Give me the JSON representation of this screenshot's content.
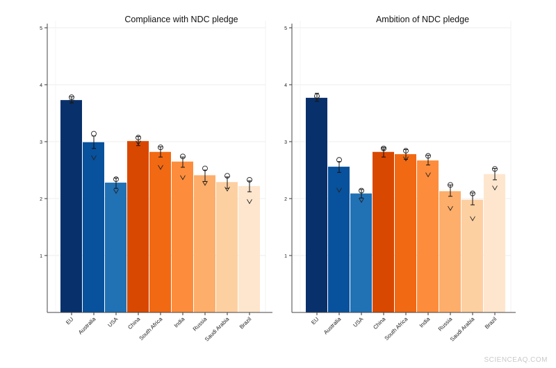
{
  "watermark": "SCIENCEAQ.COM",
  "chart_data": [
    {
      "type": "bar",
      "title": "Compliance with NDC pledge",
      "xlabel": "",
      "ylabel": "",
      "ylim": [
        0,
        5
      ],
      "yticks": [
        1,
        2,
        3,
        4,
        5
      ],
      "grid": true,
      "categories": [
        "EU",
        "Australia",
        "USA",
        "China",
        "South Africa",
        "India",
        "Russia",
        "Saudi Arabia",
        "Brazil"
      ],
      "values": [
        3.73,
        2.99,
        2.28,
        3.01,
        2.82,
        2.65,
        2.41,
        2.29,
        2.22
      ],
      "error_low": [
        3.68,
        2.88,
        2.18,
        2.93,
        2.73,
        2.55,
        2.3,
        2.18,
        2.12
      ],
      "error_high": [
        3.79,
        3.1,
        2.36,
        3.09,
        2.91,
        2.73,
        2.5,
        2.38,
        2.31
      ],
      "circle_markers": [
        3.78,
        3.14,
        2.34,
        3.07,
        2.9,
        2.74,
        2.53,
        2.4,
        2.33
      ],
      "v_markers": [
        3.7,
        2.72,
        2.13,
        2.98,
        2.55,
        2.37,
        2.27,
        2.17,
        1.95
      ],
      "colors": [
        "#08306b",
        "#08519c",
        "#2171b5",
        "#d94801",
        "#f16913",
        "#fd8d3c",
        "#fdae6b",
        "#fdd0a2",
        "#fee6ce"
      ]
    },
    {
      "type": "bar",
      "title": "Ambition of NDC pledge",
      "xlabel": "",
      "ylabel": "",
      "ylim": [
        0,
        5
      ],
      "yticks": [
        1,
        2,
        3,
        4,
        5
      ],
      "grid": true,
      "categories": [
        "EU",
        "Australia",
        "USA",
        "China",
        "South Africa",
        "India",
        "Russia",
        "Saudi Arabia",
        "Brazil"
      ],
      "values": [
        3.77,
        2.56,
        2.09,
        2.82,
        2.78,
        2.67,
        2.13,
        1.98,
        2.43
      ],
      "error_low": [
        3.71,
        2.46,
        2.01,
        2.73,
        2.69,
        2.59,
        2.04,
        1.89,
        2.33
      ],
      "error_high": [
        3.85,
        2.65,
        2.16,
        2.9,
        2.86,
        2.76,
        2.24,
        2.1,
        2.53
      ],
      "circle_markers": [
        3.8,
        2.68,
        2.14,
        2.88,
        2.84,
        2.75,
        2.24,
        2.09,
        2.52
      ],
      "v_markers": [
        3.76,
        2.15,
        1.97,
        2.87,
        2.7,
        2.42,
        1.83,
        1.65,
        2.19
      ],
      "colors": [
        "#08306b",
        "#08519c",
        "#2171b5",
        "#d94801",
        "#f16913",
        "#fd8d3c",
        "#fdae6b",
        "#fdd0a2",
        "#fee6ce"
      ]
    }
  ]
}
